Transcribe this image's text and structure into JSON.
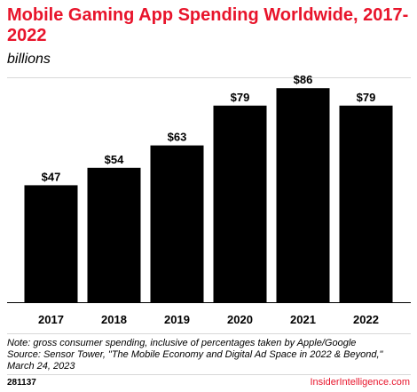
{
  "colors": {
    "accent": "#e8142b",
    "bar": "#000000",
    "rule": "#d7d7d7"
  },
  "note_lines": [
    "Note: gross consumer spending, inclusive of percentages taken by Apple/Google",
    "Source: Sensor Tower, \"The Mobile Economy and Digital Ad Space in 2022 & Beyond,\"",
    "March 24, 2023"
  ],
  "footer": {
    "code": "281137",
    "brand": "InsiderIntelligence.com"
  },
  "chart_data": {
    "type": "bar",
    "title": "Mobile Gaming App Spending Worldwide, 2017-2022",
    "subtitle": "billions",
    "categories": [
      "2017",
      "2018",
      "2019",
      "2020",
      "2021",
      "2022"
    ],
    "values": [
      47,
      54,
      63,
      79,
      86,
      79
    ],
    "data_labels": [
      "$47",
      "$54",
      "$63",
      "$79",
      "$86",
      "$79"
    ],
    "xlabel": "",
    "ylabel": "",
    "ylim": [
      0,
      90
    ],
    "grid": false,
    "legend": "none"
  }
}
